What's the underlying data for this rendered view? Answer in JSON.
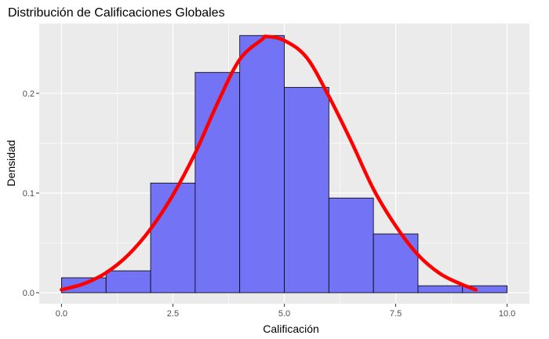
{
  "chart_data": {
    "type": "histogram",
    "title": "Distribución de Calificaciones Globales",
    "xlabel": "Calificación",
    "ylabel": "Densidad",
    "xlim": [
      -0.5,
      10.5
    ],
    "ylim": [
      -0.011,
      0.27
    ],
    "x_ticks": [
      0.0,
      2.5,
      5.0,
      7.5,
      10.0
    ],
    "x_tick_labels": [
      "0.0",
      "2.5",
      "5.0",
      "7.5",
      "10.0"
    ],
    "y_ticks": [
      0.0,
      0.1,
      0.2
    ],
    "y_tick_labels": [
      "0.0",
      "0.1",
      "0.2"
    ],
    "grid": true,
    "bins": [
      {
        "x0": 0,
        "x1": 1,
        "density": 0.015
      },
      {
        "x0": 1,
        "x1": 2,
        "density": 0.022
      },
      {
        "x0": 2,
        "x1": 3,
        "density": 0.11
      },
      {
        "x0": 3,
        "x1": 4,
        "density": 0.221
      },
      {
        "x0": 4,
        "x1": 5,
        "density": 0.258
      },
      {
        "x0": 5,
        "x1": 6,
        "density": 0.206
      },
      {
        "x0": 6,
        "x1": 7,
        "density": 0.095
      },
      {
        "x0": 7,
        "x1": 8,
        "density": 0.059
      },
      {
        "x0": 8,
        "x1": 9,
        "density": 0.007
      },
      {
        "x0": 9,
        "x1": 10,
        "density": 0.007
      }
    ],
    "density_curve": {
      "x": [
        0.0,
        0.5,
        1.0,
        1.5,
        2.0,
        2.5,
        3.0,
        3.5,
        4.0,
        4.5,
        4.6,
        5.0,
        5.5,
        6.0,
        6.5,
        7.0,
        7.5,
        8.0,
        8.5,
        9.0,
        9.3
      ],
      "y": [
        0.003,
        0.009,
        0.02,
        0.038,
        0.064,
        0.098,
        0.14,
        0.19,
        0.234,
        0.254,
        0.257,
        0.253,
        0.236,
        0.197,
        0.152,
        0.104,
        0.067,
        0.038,
        0.019,
        0.008,
        0.003
      ]
    },
    "colors": {
      "bar_fill": "#7373f5",
      "bar_stroke": "#000000",
      "curve": "#ff0000",
      "panel_bg": "#ebebeb",
      "grid": "#ffffff"
    }
  }
}
